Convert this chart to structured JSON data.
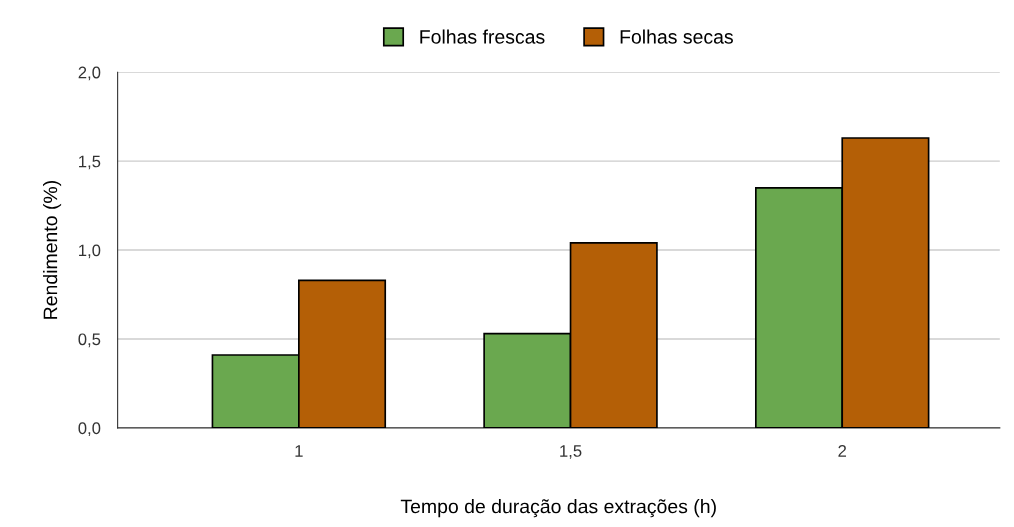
{
  "chart_data": {
    "type": "bar",
    "xlabel": "Tempo de duração das extrações (h)",
    "ylabel": "Rendimento (%)",
    "categories": [
      "1",
      "1,5",
      "2"
    ],
    "series": [
      {
        "name": "Folhas frescas",
        "color": "#6aa84f",
        "values": [
          0.41,
          0.53,
          1.35
        ]
      },
      {
        "name": "Folhas secas",
        "color": "#b45f06",
        "values": [
          0.83,
          1.04,
          1.63
        ]
      }
    ],
    "ylim": [
      0,
      2
    ],
    "yticks": [
      {
        "value": 0,
        "label": "0,0"
      },
      {
        "value": 0.5,
        "label": "0,5"
      },
      {
        "value": 1,
        "label": "1,0"
      },
      {
        "value": 1.5,
        "label": "1,5"
      },
      {
        "value": 2,
        "label": "2,0"
      }
    ],
    "grid": "y",
    "legend": "top"
  }
}
